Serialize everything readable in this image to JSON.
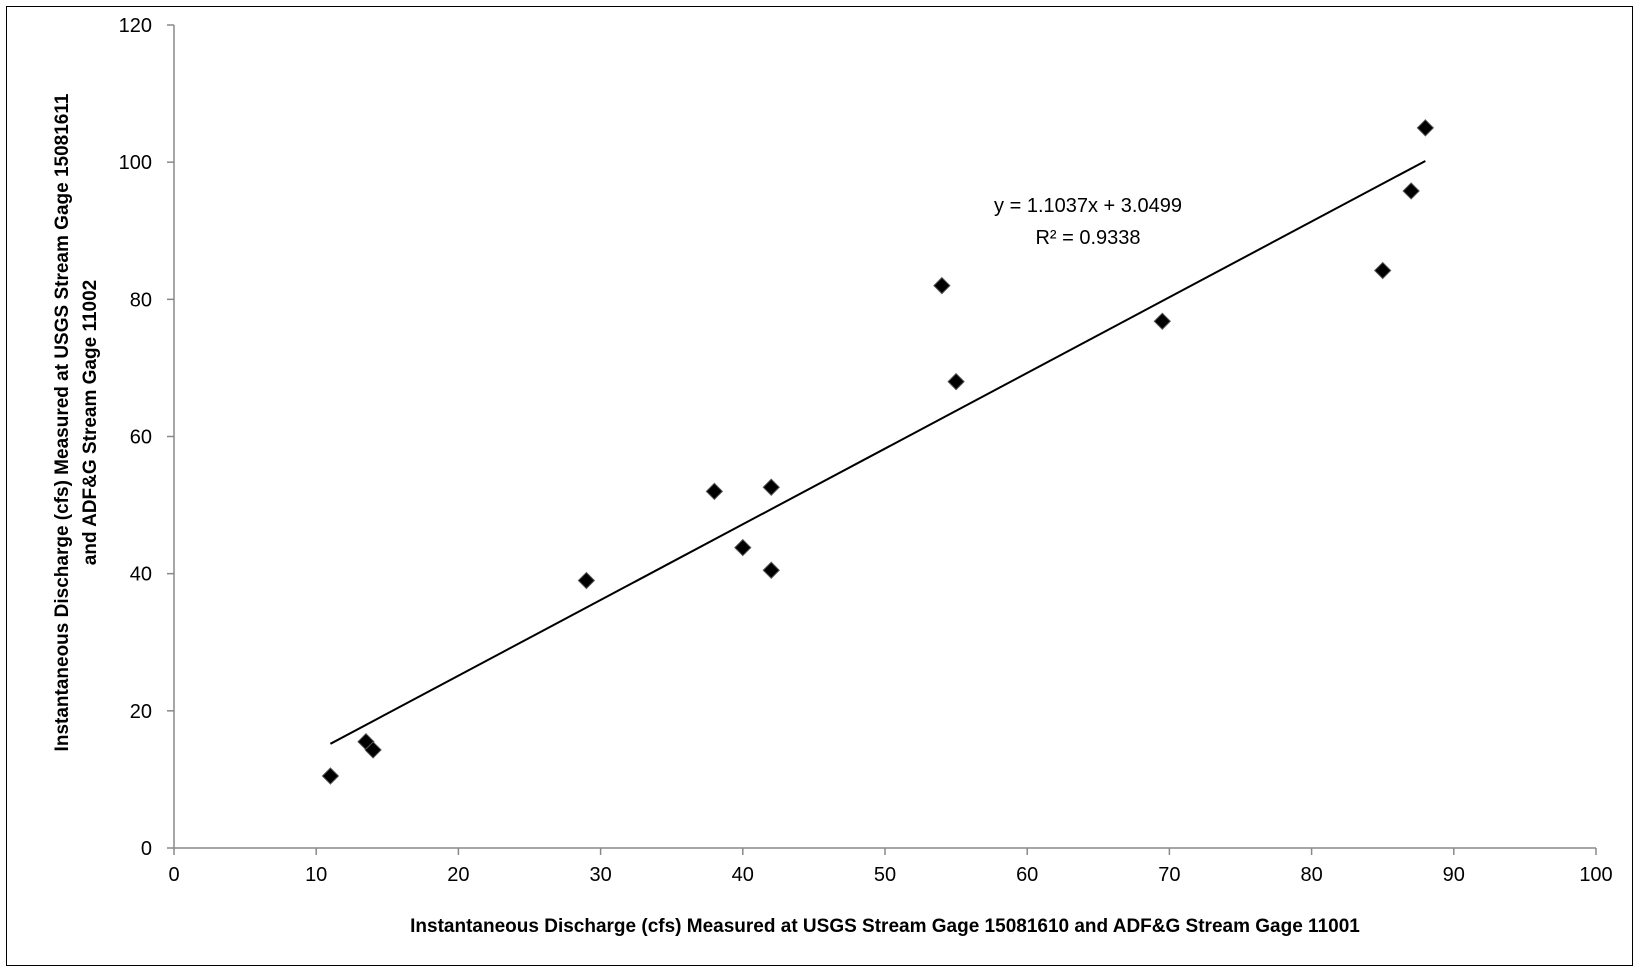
{
  "chart_data": {
    "type": "scatter",
    "title": "",
    "xlabel": "Instantaneous Discharge (cfs) Measured at USGS Stream Gage 15081610 and ADF&G Stream Gage 11001",
    "ylabel_lines": [
      "Instantaneous Discharge (cfs) Measured at USGS Stream Gage 15081611",
      "and ADF&G Stream Gage 11002"
    ],
    "xlim": [
      0,
      100
    ],
    "ylim": [
      0,
      120
    ],
    "x_ticks": [
      0,
      10,
      20,
      30,
      40,
      50,
      60,
      70,
      80,
      90,
      100
    ],
    "y_ticks": [
      0,
      20,
      40,
      60,
      80,
      100,
      120
    ],
    "grid": false,
    "legend": "none",
    "marker": "diamond",
    "marker_color": "#000000",
    "series": [
      {
        "points": [
          {
            "x": 11,
            "y": 10.5
          },
          {
            "x": 13.5,
            "y": 15.5
          },
          {
            "x": 14,
            "y": 14.3
          },
          {
            "x": 29,
            "y": 39
          },
          {
            "x": 38,
            "y": 52
          },
          {
            "x": 40,
            "y": 43.8
          },
          {
            "x": 42,
            "y": 52.6
          },
          {
            "x": 42,
            "y": 40.5
          },
          {
            "x": 54,
            "y": 82
          },
          {
            "x": 55,
            "y": 68
          },
          {
            "x": 69.5,
            "y": 76.8
          },
          {
            "x": 85,
            "y": 84.2
          },
          {
            "x": 87,
            "y": 95.8
          },
          {
            "x": 88,
            "y": 105
          }
        ]
      }
    ],
    "trendline": {
      "type": "linear",
      "slope": 1.1037,
      "intercept": 3.0499,
      "x_range": [
        11,
        88
      ],
      "equation_text": "y = 1.1037x + 3.0499",
      "r2_text": "R² = 0.9338"
    }
  }
}
